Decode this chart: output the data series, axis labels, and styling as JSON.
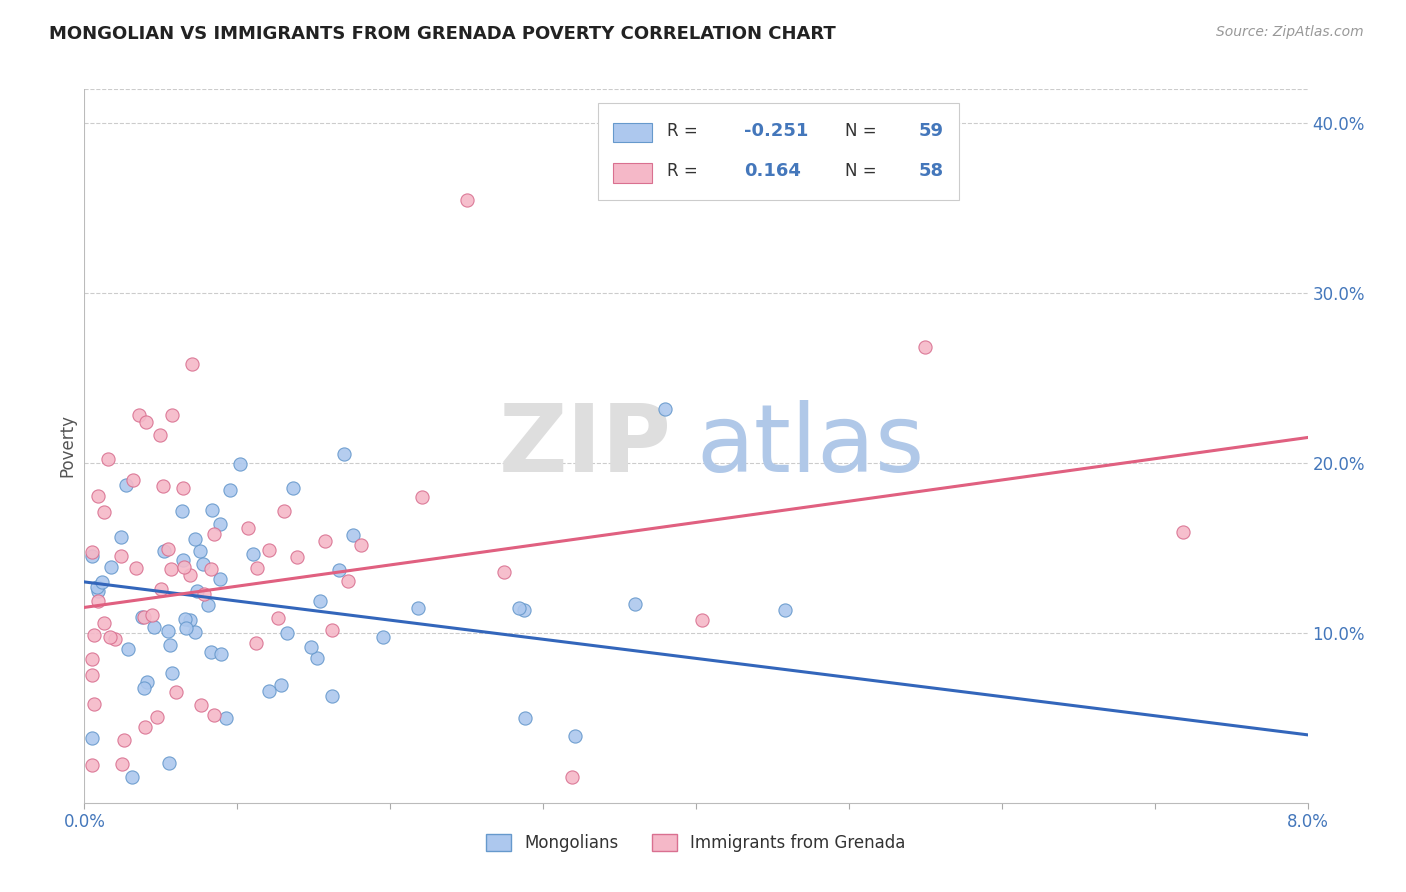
{
  "title": "MONGOLIAN VS IMMIGRANTS FROM GRENADA POVERTY CORRELATION CHART",
  "source": "Source: ZipAtlas.com",
  "ylabel": "Poverty",
  "mongolian_R": -0.251,
  "mongolian_N": 59,
  "grenada_R": 0.164,
  "grenada_N": 58,
  "mongolian_color": "#adc8ee",
  "mongolian_edge": "#6699cc",
  "grenada_color": "#f5b8c8",
  "grenada_edge": "#d97090",
  "trend_mongolian_color": "#3366bb",
  "trend_grenada_color": "#e06080",
  "background_color": "#ffffff",
  "grid_color": "#cccccc",
  "xlim": [
    0.0,
    0.08
  ],
  "ylim": [
    0.0,
    0.42
  ],
  "yticks": [
    0.1,
    0.2,
    0.3,
    0.4
  ],
  "ytick_labels": [
    "10.0%",
    "20.0%",
    "30.0%",
    "40.0%"
  ],
  "trend_mong_x0": 0.0,
  "trend_mong_y0": 0.13,
  "trend_mong_x1": 0.08,
  "trend_mong_y1": 0.04,
  "trend_gren_x0": 0.0,
  "trend_gren_y0": 0.115,
  "trend_gren_x1": 0.08,
  "trend_gren_y1": 0.215,
  "watermark_zip_color": "#d8d8d8",
  "watermark_atlas_color": "#b8cce8",
  "legend_mongolian_label": "Mongolians",
  "legend_grenada_label": "Immigrants from Grenada"
}
